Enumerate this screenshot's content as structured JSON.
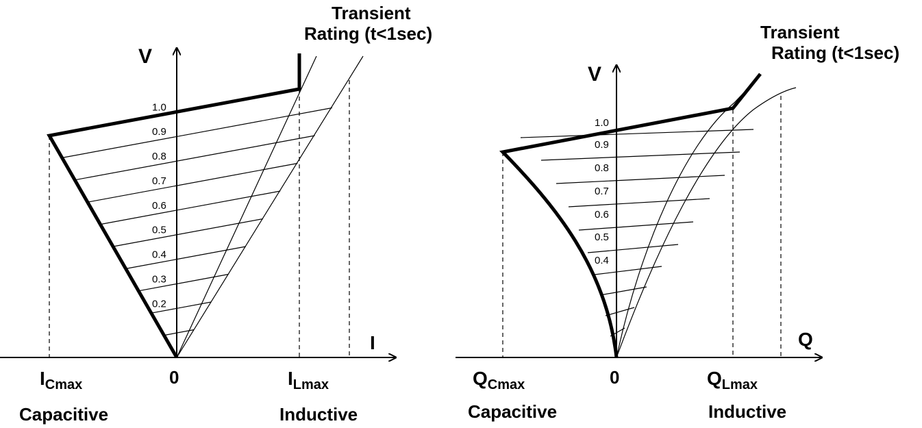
{
  "left_panel": {
    "y_axis_label": "V",
    "x_axis_label": "I",
    "origin_label": "0",
    "cap_label_main": "I",
    "cap_label_sub": "Cmax",
    "ind_label_main": "I",
    "ind_label_sub": "Lmax",
    "capacitive_label": "Capacitive",
    "inductive_label": "Inductive",
    "transient_line1": "Transient",
    "transient_line2": "Rating (t<1sec)",
    "voltage_levels": [
      "1.0",
      "0.9",
      "0.8",
      "0.7",
      "0.6",
      "0.5",
      "0.4",
      "0.3",
      "0.2"
    ]
  },
  "right_panel": {
    "y_axis_label": "V",
    "x_axis_label": "Q",
    "origin_label": "0",
    "cap_label_main": "Q",
    "cap_label_sub": "Cmax",
    "ind_label_main": "Q",
    "ind_label_sub": "Lmax",
    "capacitive_label": "Capacitive",
    "inductive_label": "Inductive",
    "transient_line1": "Transient",
    "transient_line2": "Rating  (t<1sec)",
    "voltage_levels": [
      "1.0",
      "0.9",
      "0.8",
      "0.7",
      "0.6",
      "0.5",
      "0.4"
    ]
  }
}
